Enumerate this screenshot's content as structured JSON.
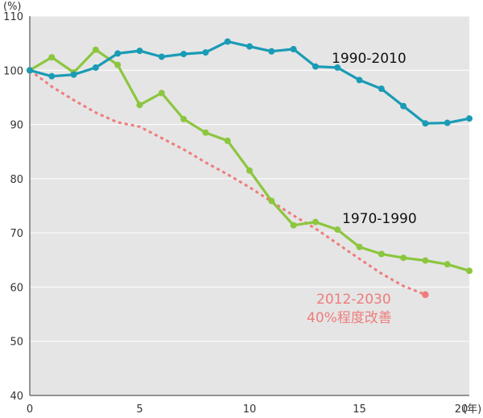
{
  "chart_data": {
    "type": "line",
    "title": "",
    "xlabel": "(年)",
    "ylabel": "(%)",
    "xlim": [
      0,
      20
    ],
    "ylim": [
      40,
      110
    ],
    "grid": true,
    "x_ticks": [
      "0",
      "5",
      "10",
      "15",
      "20"
    ],
    "y_ticks": [
      "40",
      "50",
      "60",
      "70",
      "80",
      "90",
      "100",
      "110"
    ],
    "series": [
      {
        "name": "1990-2010",
        "color": "#1a9bb5",
        "style": "solid",
        "x": [
          0,
          1,
          2,
          3,
          4,
          5,
          6,
          7,
          8,
          9,
          10,
          11,
          12,
          13,
          14,
          15,
          16,
          17,
          18,
          19,
          20
        ],
        "values": [
          100,
          98.9,
          99.2,
          100.5,
          103.1,
          103.6,
          102.5,
          103,
          103.3,
          105.3,
          104.4,
          103.5,
          103.9,
          100.7,
          100.5,
          98.2,
          96.6,
          93.4,
          90.2,
          90.3,
          91.1
        ]
      },
      {
        "name": "1970-1990",
        "color": "#8cc63f",
        "style": "solid",
        "x": [
          0,
          1,
          2,
          3,
          4,
          5,
          6,
          7,
          8,
          9,
          10,
          11,
          12,
          13,
          14,
          15,
          16,
          17,
          18,
          19,
          20
        ],
        "values": [
          100,
          102.4,
          99.6,
          103.8,
          101,
          93.6,
          95.8,
          91,
          88.5,
          87,
          81.5,
          75.9,
          71.4,
          72,
          70.6,
          67.4,
          66.1,
          65.4,
          64.9,
          64.2,
          63
        ]
      },
      {
        "name": "2012-2030",
        "color": "#ef7c7c",
        "style": "dotted",
        "x": [
          0,
          1,
          2,
          3,
          4,
          5,
          6,
          7,
          8,
          9,
          10,
          11,
          12,
          13,
          14,
          15,
          16,
          17,
          18
        ],
        "values": [
          100,
          97,
          94.5,
          92.2,
          90.4,
          89.6,
          87.5,
          85.4,
          83,
          80.8,
          78.4,
          75.8,
          73.2,
          70.8,
          68,
          65.2,
          62.5,
          60.2,
          58.6
        ]
      }
    ],
    "annotations": {
      "a1990": "1990-2010",
      "a1970": "1970-1990",
      "a2012_line1": "2012-2030",
      "a2012_line2": "40%程度改善"
    }
  }
}
